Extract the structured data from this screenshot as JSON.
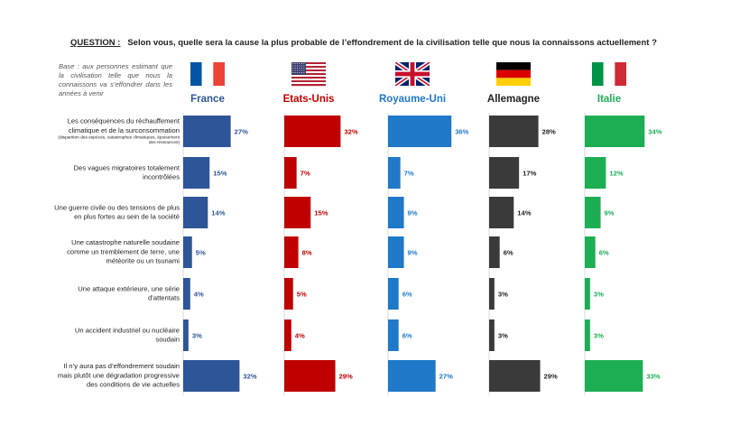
{
  "question": {
    "label": "QUESTION :",
    "text": "Selon vous, quelle sera la cause la plus probable de l’effondrement de la civilisation telle que nous la connaissons actuellement ?"
  },
  "base_note": "Base : aux personnes estimant que la civilisation telle que nous la connaissons va s’effondrer dans les années à venir",
  "chart_data": {
    "type": "bar",
    "orientation": "horizontal",
    "value_suffix": "%",
    "categories": [
      {
        "lines": [
          "Les conséquences du réchauffement",
          "climatique et de la surconsommation"
        ],
        "sub": [
          "(disparition des espèces, catastrophes climatiques, épuisement",
          "des ressources)"
        ]
      },
      {
        "lines": [
          "Des vagues migratoires totalement",
          "incontrôlées"
        ],
        "sub": []
      },
      {
        "lines": [
          "Une guerre civile ou des tensions de plus",
          "en plus fortes au sein de la société"
        ],
        "sub": []
      },
      {
        "lines": [
          "Une catastrophe naturelle soudaine",
          "comme un tremblement de terre, une",
          "météorite ou un tsunami"
        ],
        "sub": []
      },
      {
        "lines": [
          "Une attaque extérieure, une série",
          "d’attentats"
        ],
        "sub": []
      },
      {
        "lines": [
          "Un accident industriel ou nucléaire",
          "soudain"
        ],
        "sub": []
      },
      {
        "lines": [
          "Il n’y aura pas d’effondrement soudain",
          "mais plutôt une dégradation progressive",
          "des conditions de vie actuelles"
        ],
        "sub": []
      }
    ],
    "series": [
      {
        "name": "France",
        "flag": "france",
        "color": "#2E5597",
        "label_color": "#2E5597",
        "values": [
          27,
          15,
          14,
          5,
          4,
          3,
          32
        ]
      },
      {
        "name": "Etats-Unis",
        "flag": "usa",
        "color": "#C00000",
        "label_color": "#C00000",
        "values": [
          32,
          7,
          15,
          8,
          5,
          4,
          29
        ]
      },
      {
        "name": "Royaume-Uni",
        "flag": "uk",
        "color": "#1F78C8",
        "label_color": "#1F78C8",
        "values": [
          36,
          7,
          9,
          9,
          6,
          6,
          27
        ]
      },
      {
        "name": "Allemagne",
        "flag": "germany",
        "color": "#3A3A3A",
        "label_color": "#222222",
        "values": [
          28,
          17,
          14,
          6,
          3,
          3,
          29
        ]
      },
      {
        "name": "Italie",
        "flag": "italy",
        "color": "#1DAE54",
        "label_color": "#1DAE54",
        "values": [
          34,
          12,
          9,
          6,
          3,
          3,
          33
        ]
      }
    ]
  }
}
